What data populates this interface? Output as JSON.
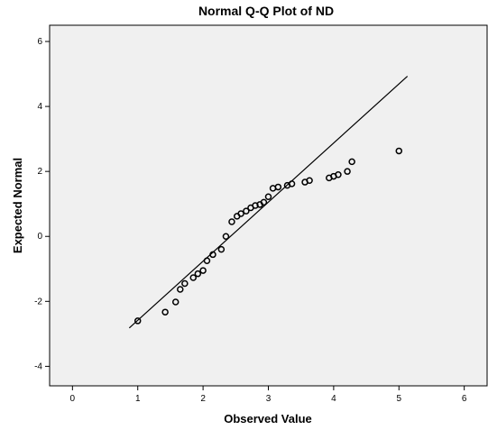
{
  "chart_data": {
    "type": "scatter",
    "title": "Normal Q-Q Plot of ND",
    "xlabel": "Observed Value",
    "ylabel": "Expected Normal",
    "xlim": [
      -0.35,
      6.35
    ],
    "ylim": [
      -4.6,
      6.5
    ],
    "x_ticks": [
      0,
      1,
      2,
      3,
      4,
      5,
      6
    ],
    "y_ticks": [
      -4,
      -2,
      0,
      2,
      4,
      6
    ],
    "grid": false,
    "legend": "none",
    "plot_background": "#f0f0f0",
    "marker_color": "#000000",
    "line_color": "#000000",
    "reference_line": {
      "x": [
        0.87,
        5.13
      ],
      "y": [
        -2.82,
        4.93
      ]
    },
    "points": [
      {
        "x": 1.0,
        "y": -2.6
      },
      {
        "x": 1.42,
        "y": -2.33
      },
      {
        "x": 1.58,
        "y": -2.02
      },
      {
        "x": 1.65,
        "y": -1.63
      },
      {
        "x": 1.72,
        "y": -1.45
      },
      {
        "x": 1.85,
        "y": -1.27
      },
      {
        "x": 1.92,
        "y": -1.15
      },
      {
        "x": 2.0,
        "y": -1.05
      },
      {
        "x": 2.06,
        "y": -0.75
      },
      {
        "x": 2.15,
        "y": -0.56
      },
      {
        "x": 2.28,
        "y": -0.4
      },
      {
        "x": 2.35,
        "y": 0.0
      },
      {
        "x": 2.44,
        "y": 0.45
      },
      {
        "x": 2.52,
        "y": 0.62
      },
      {
        "x": 2.58,
        "y": 0.7
      },
      {
        "x": 2.66,
        "y": 0.78
      },
      {
        "x": 2.73,
        "y": 0.88
      },
      {
        "x": 2.8,
        "y": 0.95
      },
      {
        "x": 2.87,
        "y": 0.98
      },
      {
        "x": 2.93,
        "y": 1.05
      },
      {
        "x": 3.0,
        "y": 1.22
      },
      {
        "x": 3.07,
        "y": 1.48
      },
      {
        "x": 3.15,
        "y": 1.52
      },
      {
        "x": 3.29,
        "y": 1.57
      },
      {
        "x": 3.36,
        "y": 1.62
      },
      {
        "x": 3.56,
        "y": 1.67
      },
      {
        "x": 3.63,
        "y": 1.72
      },
      {
        "x": 3.93,
        "y": 1.8
      },
      {
        "x": 4.0,
        "y": 1.85
      },
      {
        "x": 4.07,
        "y": 1.9
      },
      {
        "x": 4.21,
        "y": 2.0
      },
      {
        "x": 4.28,
        "y": 2.3
      },
      {
        "x": 5.0,
        "y": 2.63
      }
    ]
  }
}
